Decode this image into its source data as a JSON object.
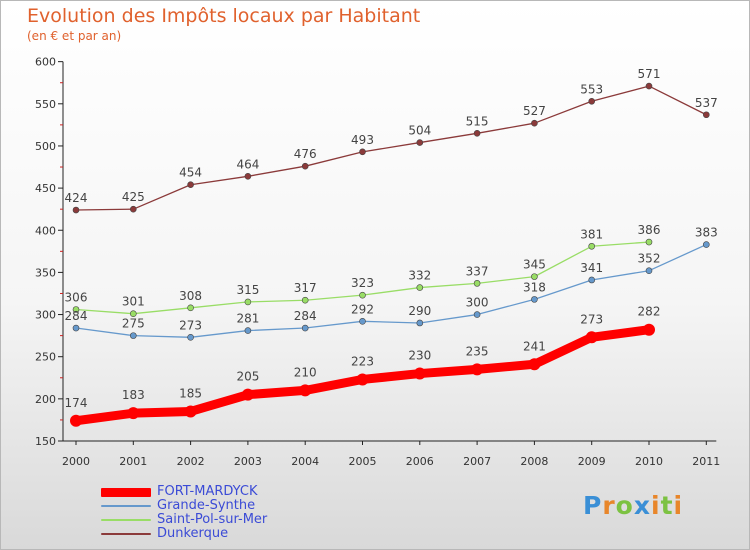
{
  "chart_data": {
    "type": "line",
    "title": "Evolution des Impôts locaux par Habitant",
    "subtitle": "(en € et par an)",
    "x": [
      "2000",
      "2001",
      "2002",
      "2003",
      "2004",
      "2005",
      "2006",
      "2007",
      "2008",
      "2009",
      "2010",
      "2011"
    ],
    "ylim": [
      150,
      600
    ],
    "yticks": [
      150,
      200,
      250,
      300,
      350,
      400,
      450,
      500,
      550,
      600
    ],
    "grid": false,
    "legend_position": "bottom-left",
    "series": [
      {
        "name": "FORT-MARDYCK",
        "color": "#ff0000",
        "values": [
          174,
          183,
          185,
          205,
          210,
          223,
          230,
          235,
          241,
          273,
          282,
          null
        ]
      },
      {
        "name": "Grande-Synthe",
        "color": "#6699cc",
        "values": [
          284,
          275,
          273,
          281,
          284,
          292,
          290,
          300,
          318,
          341,
          352,
          383
        ]
      },
      {
        "name": "Saint-Pol-sur-Mer",
        "color": "#99dd66",
        "values": [
          306,
          301,
          308,
          315,
          317,
          323,
          332,
          337,
          345,
          381,
          386,
          null
        ]
      },
      {
        "name": "Dunkerque",
        "color": "#8b3a3a",
        "values": [
          424,
          425,
          454,
          464,
          476,
          493,
          504,
          515,
          527,
          553,
          571,
          537
        ]
      }
    ]
  },
  "logo": {
    "letters": [
      "P",
      "r",
      "o",
      "x",
      "i",
      "t",
      "i"
    ],
    "colors": [
      "#3a8fd6",
      "#e8862a",
      "#7cc242",
      "#3a8fd6",
      "#e8862a",
      "#7cc242",
      "#e8862a"
    ]
  }
}
